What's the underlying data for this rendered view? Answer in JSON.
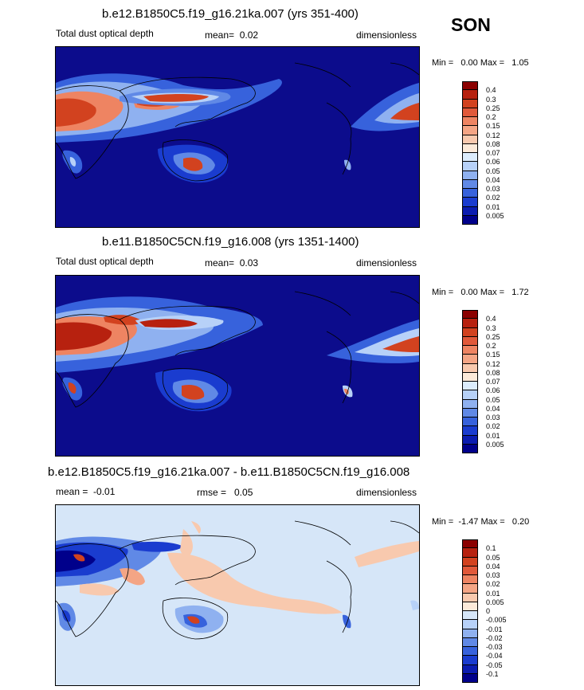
{
  "season": "SON",
  "panels": [
    {
      "title": "b.e12.B1850C5.f19_g16.21ka.007 (yrs 351-400)",
      "left_label": "Total dust optical depth",
      "mean_label": "mean=",
      "mean_value": "0.02",
      "units": "dimensionless",
      "minmax": "Min =   0.00 Max =   1.05",
      "colorbar_labels": [
        "0.4",
        "0.3",
        "0.25",
        "0.2",
        "0.15",
        "0.12",
        "0.08",
        "0.07",
        "0.06",
        "0.05",
        "0.04",
        "0.03",
        "0.02",
        "0.01",
        "0.005"
      ]
    },
    {
      "title": "b.e11.B1850C5CN.f19_g16.008 (yrs 1351-1400)",
      "left_label": "Total dust optical depth",
      "mean_label": "mean=",
      "mean_value": "0.03",
      "units": "dimensionless",
      "minmax": "Min =   0.00 Max =   1.72",
      "colorbar_labels": [
        "0.4",
        "0.3",
        "0.25",
        "0.2",
        "0.15",
        "0.12",
        "0.08",
        "0.07",
        "0.06",
        "0.05",
        "0.04",
        "0.03",
        "0.02",
        "0.01",
        "0.005"
      ]
    },
    {
      "title": "b.e12.B1850C5.f19_g16.21ka.007 - b.e11.B1850C5CN.f19_g16.008",
      "left_label": "mean =  -0.01",
      "mid_label": "rmse =   0.05",
      "units": "dimensionless",
      "minmax": "Min =  -1.47 Max =   0.20",
      "colorbar_labels": [
        "0.1",
        "0.05",
        "0.04",
        "0.03",
        "0.02",
        "0.01",
        "0.005",
        "0",
        "-0.005",
        "-0.01",
        "-0.02",
        "-0.03",
        "-0.04",
        "-0.05",
        "-0.1"
      ]
    }
  ],
  "colors": {
    "abs_scale": [
      "#8b0000",
      "#b7210f",
      "#d2421f",
      "#e1593a",
      "#ee8462",
      "#f4a585",
      "#f8c9ae",
      "#fcead9",
      "#dcecfc",
      "#b7d1f8",
      "#8fb1f0",
      "#6089e6",
      "#3762dc",
      "#1a3ccf",
      "#0b1cb0",
      "#00008b"
    ],
    "diff_scale": [
      "#8b0000",
      "#b7210f",
      "#d2421f",
      "#e1593a",
      "#ee8462",
      "#f4a585",
      "#f8c9ae",
      "#fcead9",
      "#d6e6f8",
      "#b7d1f8",
      "#8fb1f0",
      "#6089e6",
      "#3762dc",
      "#1a3ccf",
      "#0b1cb0",
      "#00008b"
    ],
    "ocean_abs": "#0c0c8c",
    "ocean_diff": "#d6e6f8"
  },
  "chart_data": [
    {
      "type": "heatmap",
      "title": "b.e12.B1850C5.f19_g16.21ka.007 (yrs 351-400)",
      "variable": "Total dust optical depth",
      "units": "dimensionless",
      "mean": 0.02,
      "min": 0.0,
      "max": 1.05,
      "levels": [
        0.005,
        0.01,
        0.02,
        0.03,
        0.04,
        0.05,
        0.06,
        0.07,
        0.08,
        0.12,
        0.15,
        0.2,
        0.25,
        0.3,
        0.4
      ],
      "season": "SON"
    },
    {
      "type": "heatmap",
      "title": "b.e11.B1850C5CN.f19_g16.008 (yrs 1351-1400)",
      "variable": "Total dust optical depth",
      "units": "dimensionless",
      "mean": 0.03,
      "min": 0.0,
      "max": 1.72,
      "levels": [
        0.005,
        0.01,
        0.02,
        0.03,
        0.04,
        0.05,
        0.06,
        0.07,
        0.08,
        0.12,
        0.15,
        0.2,
        0.25,
        0.3,
        0.4
      ],
      "season": "SON"
    },
    {
      "type": "heatmap",
      "title": "b.e12.B1850C5.f19_g16.21ka.007 - b.e11.B1850C5CN.f19_g16.008",
      "units": "dimensionless",
      "mean": -0.01,
      "rmse": 0.05,
      "min": -1.47,
      "max": 0.2,
      "levels": [
        -0.1,
        -0.05,
        -0.04,
        -0.03,
        -0.02,
        -0.01,
        -0.005,
        0,
        0.005,
        0.01,
        0.02,
        0.03,
        0.04,
        0.05,
        0.1
      ],
      "season": "SON"
    }
  ]
}
